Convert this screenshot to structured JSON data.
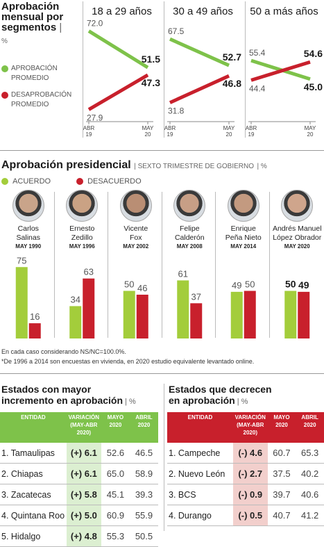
{
  "section1": {
    "title": [
      "Aprobación",
      "mensual por",
      "segmentos"
    ],
    "unit": "%",
    "legend": [
      {
        "label": [
          "APROBACIÓN",
          "PROMEDIO"
        ],
        "color": "#7ec24a"
      },
      {
        "label": [
          "DESAPROBACIÓN",
          "PROMEDIO"
        ],
        "color": "#c8202c"
      }
    ]
  },
  "section2": {
    "title": "Aprobación presidencial",
    "subtitle": "SEXTO TRIMESTRE DE GOBIERNO",
    "unit": "%",
    "legend": [
      {
        "label": "ACUERDO",
        "color": "#a3cd3b"
      },
      {
        "label": "DESACUERDO",
        "color": "#c8202c"
      }
    ],
    "notes": [
      "En cada caso considerando NS/NC=100.0%.",
      "*De 1996 a 2014 son encuestas en vivienda, en 2020 estudio equivalente levantado online."
    ]
  },
  "chart_data": [
    {
      "type": "line",
      "title": "18 a 29 años",
      "x": [
        "ABR 19",
        "MAY 20"
      ],
      "series": [
        {
          "name": "APROBACIÓN PROMEDIO",
          "values": [
            72.0,
            51.5
          ],
          "color": "#7ec24a"
        },
        {
          "name": "DESAPROBACIÓN PROMEDIO",
          "values": [
            27.9,
            47.3
          ],
          "color": "#c8202c"
        }
      ]
    },
    {
      "type": "line",
      "title": "30 a 49 años",
      "x": [
        "ABR 19",
        "MAY 20"
      ],
      "series": [
        {
          "name": "APROBACIÓN PROMEDIO",
          "values": [
            67.5,
            52.7
          ],
          "color": "#7ec24a"
        },
        {
          "name": "DESAPROBACIÓN PROMEDIO",
          "values": [
            31.8,
            46.8
          ],
          "color": "#c8202c"
        }
      ]
    },
    {
      "type": "line",
      "title": "50 a más años",
      "x": [
        "ABR 19",
        "MAY 20"
      ],
      "series": [
        {
          "name": "APROBACIÓN PROMEDIO",
          "values": [
            55.4,
            45.0
          ],
          "color": "#7ec24a"
        },
        {
          "name": "DESAPROBACIÓN PROMEDIO",
          "values": [
            44.4,
            54.6
          ],
          "color": "#c8202c"
        }
      ]
    },
    {
      "type": "bar",
      "title": "Aprobación presidencial",
      "categories": [
        "Carlos Salinas",
        "Ernesto Zedillo",
        "Vicente Fox",
        "Felipe Calderón",
        "Enrique Peña Nieto",
        "Andrés Manuel López Obrador"
      ],
      "series": [
        {
          "name": "ACUERDO",
          "values": [
            75,
            34,
            50,
            61,
            49,
            50
          ],
          "color": "#a3cd3b"
        },
        {
          "name": "DESACUERDO",
          "values": [
            16,
            63,
            46,
            37,
            50,
            49
          ],
          "color": "#c8202c"
        }
      ],
      "presidents": [
        {
          "name": [
            "Carlos",
            "Salinas"
          ],
          "date": "MAY 1990"
        },
        {
          "name": [
            "Ernesto",
            "Zedillo"
          ],
          "date": "MAY 1996"
        },
        {
          "name": [
            "Vicente",
            "Fox"
          ],
          "date": "MAY 2002"
        },
        {
          "name": [
            "Felipe",
            "Calderón"
          ],
          "date": "MAY 2008"
        },
        {
          "name": [
            "Enrique",
            "Peña Nieto"
          ],
          "date": "MAY 2014"
        },
        {
          "name": [
            "Andrés Manuel",
            "López Obrador"
          ],
          "date": "MAY 2020"
        }
      ]
    }
  ],
  "table_up": {
    "title": [
      "Estados con mayor",
      "incremento en aprobación"
    ],
    "unit": "%",
    "header_color": "#7ec24a",
    "columns": [
      "ENTIDAD",
      "VARIACIÓN (MAY-ABR 2020)",
      "MAYO 2020",
      "ABRIL 2020"
    ],
    "rows": [
      [
        "1. Tamaulipas",
        "(+) 6.1",
        "52.6",
        "46.5"
      ],
      [
        "2. Chiapas",
        "(+) 6.1",
        "65.0",
        "58.9"
      ],
      [
        "3. Zacatecas",
        "(+) 5.8",
        "45.1",
        "39.3"
      ],
      [
        "4. Quintana Roo",
        "(+) 5.0",
        "60.9",
        "55.9"
      ],
      [
        "5. Hidalgo",
        "(+) 4.8",
        "55.3",
        "50.5"
      ]
    ]
  },
  "table_down": {
    "title": [
      "Estados que decrecen",
      "en aprobación"
    ],
    "unit": "%",
    "header_color": "#c8202c",
    "columns": [
      "ENTIDAD",
      "VARIACIÓN (MAY-ABR 2020)",
      "MAYO 2020",
      "ABRIL 2020"
    ],
    "rows": [
      [
        "1. Campeche",
        "(-) 4.6",
        "60.7",
        "65.3"
      ],
      [
        "2. Nuevo León",
        "(-) 2.7",
        "37.5",
        "40.2"
      ],
      [
        "3. BCS",
        "(-) 0.9",
        "39.7",
        "40.6"
      ],
      [
        "4. Durango",
        "(-) 0.5",
        "40.7",
        "41.2"
      ]
    ]
  }
}
